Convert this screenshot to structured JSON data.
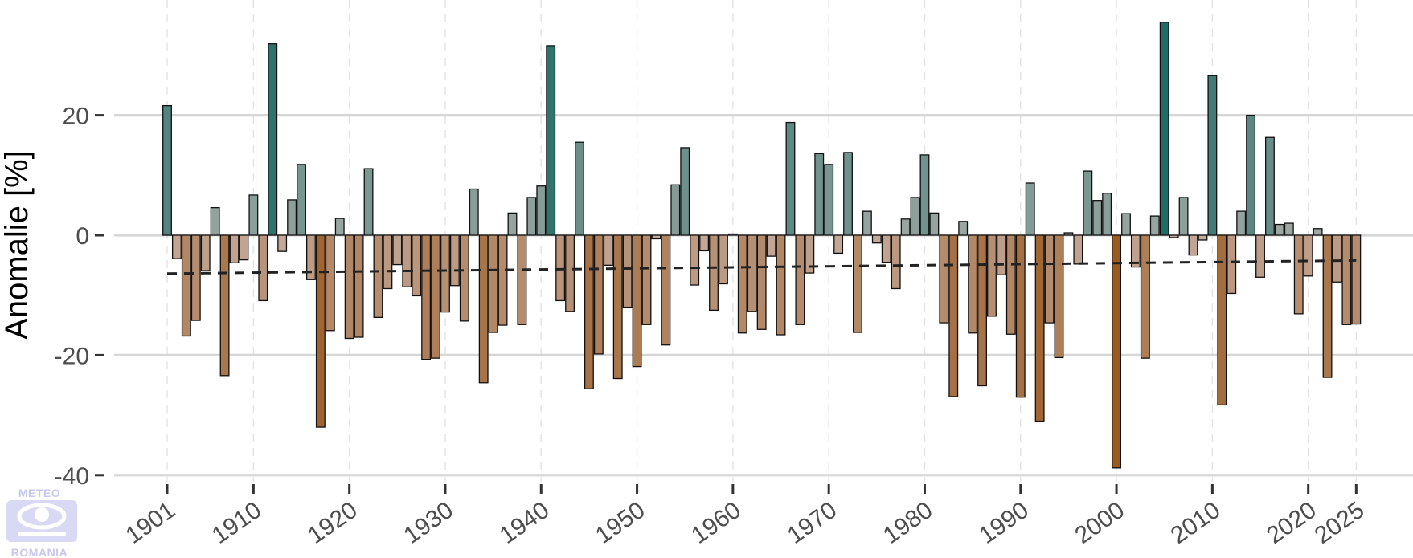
{
  "chart_data": {
    "type": "bar",
    "ylabel": "Anomalie [%]",
    "xlabel": "",
    "title": "",
    "ylim": [
      -41,
      39
    ],
    "xlim": [
      1900,
      2026
    ],
    "yticks": [
      -40,
      -20,
      0,
      20
    ],
    "xticks": [
      1901,
      1910,
      1920,
      1930,
      1940,
      1950,
      1960,
      1970,
      1980,
      1990,
      2000,
      2010,
      2020,
      2025
    ],
    "grid": true,
    "legend": "none",
    "years_start": 1901,
    "values": [
      21.6,
      -3.9,
      -16.8,
      -14.2,
      -5.9,
      4.6,
      -23.4,
      -4.6,
      -4.1,
      6.7,
      -10.9,
      31.9,
      -2.7,
      5.9,
      11.8,
      -7.4,
      -32.0,
      -15.9,
      2.8,
      -17.2,
      -17.0,
      11.1,
      -13.7,
      -8.9,
      -4.9,
      -8.6,
      -10.1,
      -20.7,
      -20.5,
      -12.8,
      -8.4,
      -14.3,
      7.7,
      -24.6,
      -16.2,
      -15.0,
      3.7,
      -14.9,
      6.3,
      8.2,
      31.6,
      -10.9,
      -12.7,
      15.5,
      -25.6,
      -19.8,
      -5.0,
      -23.9,
      -12.0,
      -21.9,
      -14.9,
      -0.6,
      -18.3,
      8.4,
      14.6,
      -8.3,
      -2.6,
      -12.5,
      -8.1,
      0.2,
      -16.3,
      -12.7,
      -15.7,
      -3.5,
      -16.6,
      18.8,
      -14.9,
      -6.3,
      13.6,
      11.8,
      -3.0,
      13.8,
      -16.2,
      4.0,
      -1.3,
      -4.5,
      -8.9,
      2.7,
      6.3,
      13.4,
      3.7,
      -14.6,
      -26.9,
      2.3,
      -16.3,
      -25.1,
      -13.5,
      -6.6,
      -16.5,
      -27.0,
      8.7,
      -31.0,
      -14.6,
      -20.4,
      0.4,
      -4.8,
      10.7,
      5.8,
      7.0,
      -38.8,
      3.6,
      -5.3,
      -20.5,
      3.2,
      35.5,
      -0.4,
      6.3,
      -3.3,
      -0.8,
      26.6,
      -28.3,
      -9.7,
      4.0,
      20.0,
      -7.0,
      16.3,
      1.8,
      2.0,
      -13.1,
      -6.8,
      1.1,
      -23.7,
      -7.8,
      -14.9,
      -14.8
    ],
    "trend": {
      "start_year": 1901,
      "start_value": -6.4,
      "end_year": 2025,
      "end_value": -4.2,
      "style": "dashed"
    },
    "colors": {
      "wet_strong": "#1f6b63",
      "wet_light": "#a3aaa6",
      "dry_strong": "#9a5b22",
      "dry_light": "#c6ada0",
      "grid": "#d6d6d6",
      "axis_text": "#4d4d4d",
      "trend": "#222222"
    }
  },
  "logo": {
    "top_text": "METEO",
    "bottom_text": "ROMANIA",
    "color": "#c8c8ec"
  }
}
